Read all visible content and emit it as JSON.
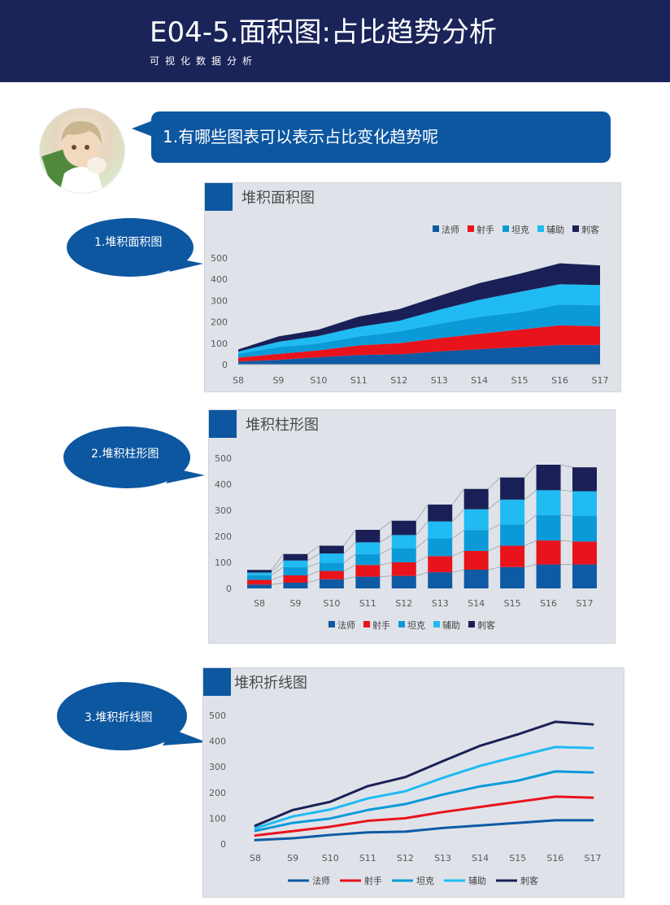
{
  "header": {
    "title": "E04-5.面积图:占比趋势分析",
    "subtitle": "可视化数据分析"
  },
  "question": {
    "text": "1.有哪些图表可以表示占比变化趋势呢"
  },
  "bubbles": [
    {
      "text": "1.堆积面积图"
    },
    {
      "text": "2.堆积柱形图"
    },
    {
      "text": "3.堆积折线图"
    }
  ],
  "colors": {
    "header_bg": "#1b2459",
    "accent": "#0d57a1",
    "panel_bg": "#dfe3e9",
    "法师": "#0f5aa4",
    "射手": "#e8131b",
    "坦克": "#0b9ad8",
    "辅助": "#1fbbf2",
    "刺客": "#1a2057"
  },
  "chart_data": [
    {
      "type": "area",
      "stacked": true,
      "title": "堆积面积图",
      "legend_position": "top-right",
      "categories": [
        "S8",
        "S9",
        "S10",
        "S11",
        "S12",
        "S13",
        "S14",
        "S15",
        "S16",
        "S17"
      ],
      "ylim": [
        0,
        500
      ],
      "yticks": [
        0,
        100,
        200,
        300,
        400,
        500
      ],
      "series": [
        {
          "name": "法师",
          "values": [
            15,
            22,
            35,
            45,
            48,
            62,
            72,
            82,
            92,
            92
          ]
        },
        {
          "name": "射手",
          "values": [
            18,
            28,
            32,
            45,
            52,
            62,
            72,
            82,
            92,
            88
          ]
        },
        {
          "name": "坦克",
          "values": [
            18,
            32,
            32,
            42,
            55,
            68,
            80,
            82,
            98,
            98
          ]
        },
        {
          "name": "辅助",
          "values": [
            10,
            25,
            35,
            45,
            50,
            65,
            80,
            95,
            95,
            95
          ]
        },
        {
          "name": "刺客",
          "values": [
            10,
            25,
            30,
            48,
            55,
            65,
            78,
            85,
            98,
            92
          ]
        }
      ]
    },
    {
      "type": "bar",
      "stacked": true,
      "title": "堆积柱形图",
      "legend_position": "bottom",
      "categories": [
        "S8",
        "S9",
        "S10",
        "S11",
        "S12",
        "S13",
        "S14",
        "S15",
        "S16",
        "S17"
      ],
      "ylim": [
        0,
        500
      ],
      "yticks": [
        0,
        100,
        200,
        300,
        400,
        500
      ],
      "series": [
        {
          "name": "法师",
          "values": [
            15,
            22,
            35,
            45,
            48,
            62,
            72,
            82,
            92,
            92
          ]
        },
        {
          "name": "射手",
          "values": [
            18,
            28,
            32,
            45,
            52,
            62,
            72,
            82,
            92,
            88
          ]
        },
        {
          "name": "坦克",
          "values": [
            18,
            32,
            32,
            42,
            55,
            68,
            80,
            82,
            98,
            98
          ]
        },
        {
          "name": "辅助",
          "values": [
            10,
            25,
            35,
            45,
            50,
            65,
            80,
            95,
            95,
            95
          ]
        },
        {
          "name": "刺客",
          "values": [
            10,
            25,
            30,
            48,
            55,
            65,
            78,
            85,
            98,
            92
          ]
        }
      ]
    },
    {
      "type": "line",
      "stacked": true,
      "title": "堆积折线图",
      "legend_position": "bottom",
      "categories": [
        "S8",
        "S9",
        "S10",
        "S11",
        "S12",
        "S13",
        "S14",
        "S15",
        "S16",
        "S17"
      ],
      "ylim": [
        0,
        500
      ],
      "yticks": [
        0,
        100,
        200,
        300,
        400,
        500
      ],
      "series": [
        {
          "name": "法师",
          "values": [
            15,
            22,
            35,
            45,
            48,
            62,
            72,
            82,
            92,
            92
          ]
        },
        {
          "name": "射手",
          "values": [
            18,
            28,
            32,
            45,
            52,
            62,
            72,
            82,
            92,
            88
          ]
        },
        {
          "name": "坦克",
          "values": [
            18,
            32,
            32,
            42,
            55,
            68,
            80,
            82,
            98,
            98
          ]
        },
        {
          "name": "辅助",
          "values": [
            10,
            25,
            35,
            45,
            50,
            65,
            80,
            95,
            95,
            95
          ]
        },
        {
          "name": "刺客",
          "values": [
            10,
            25,
            30,
            48,
            55,
            65,
            78,
            85,
            98,
            92
          ]
        }
      ]
    }
  ]
}
